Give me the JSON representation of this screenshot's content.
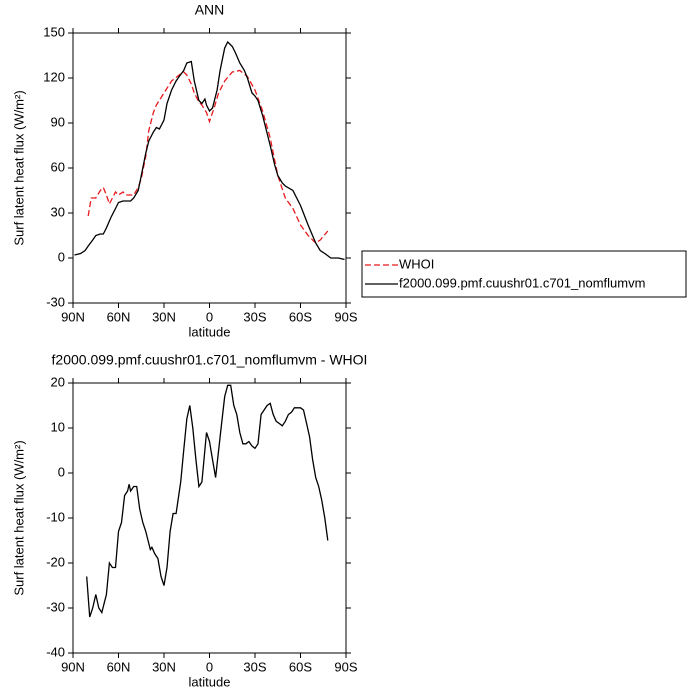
{
  "chart_data": [
    {
      "type": "line",
      "title": "ANN",
      "xlabel": "latitude",
      "ylabel": "Surf latent heat flux (W/m²)",
      "xlim": [
        90,
        -90
      ],
      "xticks": [
        {
          "value": 90,
          "label": "90N"
        },
        {
          "value": 60,
          "label": "60N"
        },
        {
          "value": 30,
          "label": "30N"
        },
        0,
        {
          "value": -30,
          "label": "30S"
        },
        {
          "value": -60,
          "label": "60S"
        },
        {
          "value": -90,
          "label": "90S"
        }
      ],
      "ylim": [
        -30,
        150
      ],
      "yticks": [
        -30,
        0,
        30,
        60,
        90,
        120,
        150
      ],
      "grid": false,
      "legend": "right",
      "series": [
        {
          "name": "WHOI",
          "color": "#e8191c",
          "line_style": "dashed",
          "x": [
            80,
            78,
            75,
            72,
            70,
            68,
            66,
            64,
            62,
            60,
            57,
            55,
            50,
            47,
            45,
            42,
            40,
            37,
            35,
            30,
            25,
            20,
            17,
            15,
            12,
            10,
            7,
            5,
            2,
            0,
            -3,
            -6,
            -10,
            -15,
            -20,
            -25,
            -30,
            -35,
            -40,
            -45,
            -50,
            -55,
            -60,
            -65,
            -70,
            -73,
            -78
          ],
          "values": [
            28,
            40,
            40,
            45,
            47,
            42,
            36,
            40,
            44,
            42,
            44,
            42,
            42,
            47,
            53,
            68,
            85,
            97,
            102,
            110,
            118,
            122,
            124,
            122,
            116,
            110,
            104,
            102,
            97,
            91,
            100,
            110,
            118,
            124,
            125,
            121,
            112,
            98,
            80,
            55,
            40,
            33,
            22,
            15,
            10,
            12,
            18
          ]
        },
        {
          "name": "f2000.099.pmf.cuushr01.c701_nomflumvm",
          "color": "#000000",
          "line_style": "solid",
          "x": [
            89,
            85,
            82,
            80,
            77,
            75,
            72,
            70,
            68,
            65,
            62,
            60,
            57,
            55,
            52,
            50,
            47,
            45,
            42,
            40,
            37,
            35,
            33,
            30,
            28,
            25,
            22,
            20,
            17,
            15,
            12,
            10,
            7,
            5,
            3,
            2,
            0,
            -2,
            -5,
            -7,
            -10,
            -12,
            -15,
            -17,
            -20,
            -23,
            -25,
            -28,
            -30,
            -32,
            -35,
            -40,
            -43,
            -45,
            -48,
            -50,
            -55,
            -60,
            -65,
            -70,
            -73,
            -76,
            -80,
            -85,
            -89
          ],
          "values": [
            2,
            3,
            5,
            8,
            12,
            15,
            16,
            16,
            20,
            27,
            33,
            37,
            38,
            38,
            38,
            40,
            45,
            55,
            70,
            78,
            84,
            87,
            86,
            92,
            103,
            112,
            118,
            121,
            125,
            130,
            131,
            118,
            105,
            103,
            106,
            102,
            98,
            100,
            112,
            125,
            140,
            144,
            141,
            137,
            130,
            125,
            120,
            110,
            108,
            105,
            95,
            75,
            62,
            55,
            50,
            48,
            45,
            35,
            22,
            10,
            5,
            3,
            0,
            0,
            -1
          ]
        }
      ]
    },
    {
      "type": "line",
      "title": "f2000.099.pmf.cuushr01.c701_nomflumvm - WHOI",
      "xlabel": "latitude",
      "ylabel": "Surf latent heat flux (W/m²)",
      "xlim": [
        90,
        -90
      ],
      "xticks": [
        {
          "value": 90,
          "label": "90N"
        },
        {
          "value": 60,
          "label": "60N"
        },
        {
          "value": 30,
          "label": "30N"
        },
        0,
        {
          "value": -30,
          "label": "30S"
        },
        {
          "value": -60,
          "label": "60S"
        },
        {
          "value": -90,
          "label": "90S"
        }
      ],
      "ylim": [
        -40,
        20
      ],
      "yticks": [
        -40,
        -30,
        -20,
        -10,
        0,
        10,
        20
      ],
      "grid": false,
      "series": [
        {
          "color": "#000000",
          "line_style": "solid",
          "x": [
            81,
            79,
            77,
            75,
            73,
            71,
            68,
            66,
            64,
            62,
            60,
            58,
            56,
            54,
            53,
            52,
            50,
            48,
            46,
            44,
            42,
            39,
            38,
            36,
            34,
            32,
            30,
            28,
            26,
            24,
            22,
            19,
            17,
            15,
            13,
            11,
            9,
            7,
            5,
            2,
            0,
            -2,
            -4,
            -6,
            -8,
            -10,
            -12,
            -14,
            -16,
            -18,
            -20,
            -22,
            -24,
            -26,
            -28,
            -30,
            -32,
            -34,
            -36,
            -38,
            -40,
            -42,
            -44,
            -46,
            -48,
            -50,
            -52,
            -54,
            -56,
            -58,
            -60,
            -62,
            -64,
            -66,
            -68,
            -70,
            -72,
            -74,
            -76,
            -78
          ],
          "values": [
            -23,
            -32,
            -30,
            -27,
            -30,
            -31,
            -27,
            -20,
            -21,
            -21,
            -13,
            -11,
            -5,
            -4,
            -2.5,
            -4,
            -3,
            -3,
            -8,
            -11,
            -13,
            -17,
            -16.5,
            -18,
            -19,
            -23,
            -25,
            -21,
            -13,
            -9,
            -9,
            -2,
            5,
            12,
            15,
            10,
            3,
            -3,
            -2,
            9,
            7,
            3,
            -1,
            5,
            11,
            17,
            19.5,
            19.5,
            15,
            13,
            9,
            6.5,
            6.5,
            7,
            6,
            5.5,
            6.5,
            13,
            14,
            15,
            15.5,
            13,
            11.5,
            11,
            10.5,
            11.5,
            13,
            13.5,
            14.5,
            14.5,
            14.5,
            14,
            11,
            8,
            3,
            -1,
            -3,
            -6,
            -10,
            -15
          ]
        }
      ]
    }
  ]
}
